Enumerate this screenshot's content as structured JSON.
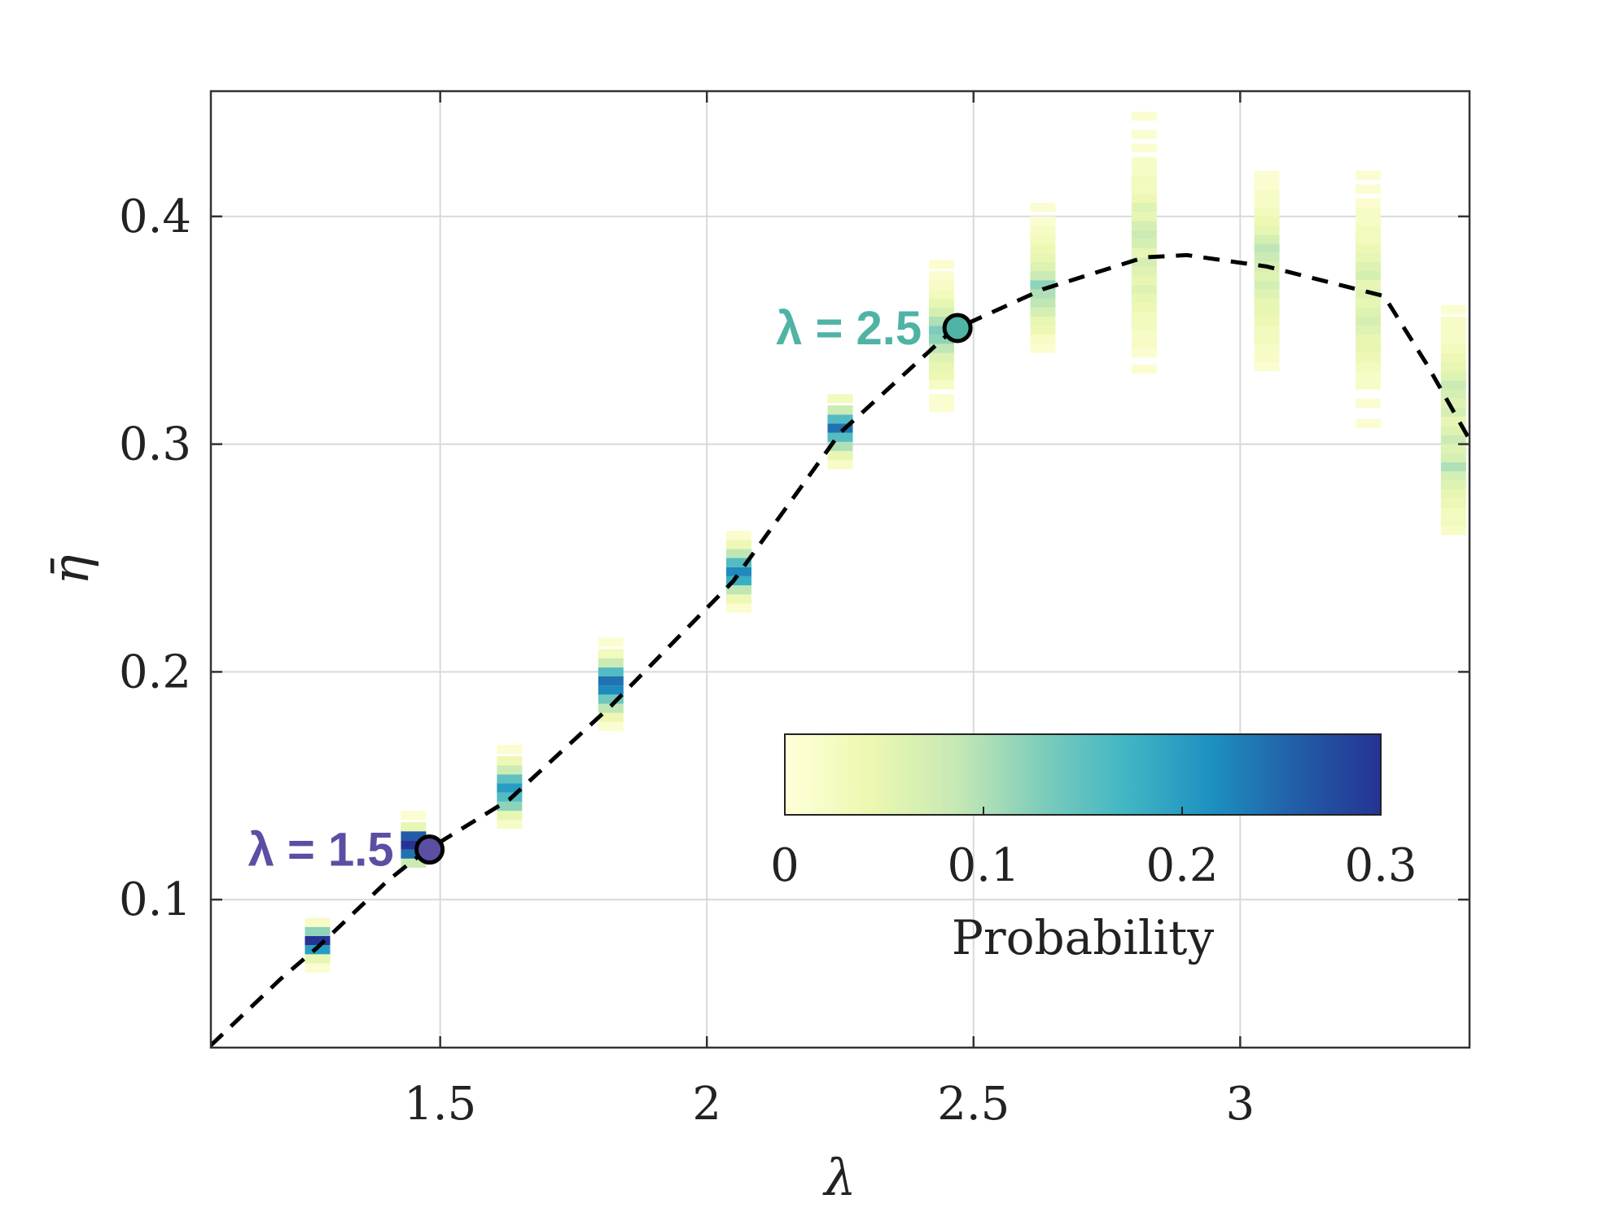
{
  "chart_data": {
    "type": "heatmap",
    "xlabel": "λ",
    "ylabel": "η̄",
    "xlim": [
      1.07,
      3.43
    ],
    "ylim": [
      0.035,
      0.455
    ],
    "xticks": [
      1.5,
      2,
      2.5,
      3
    ],
    "xtick_labels": [
      "1.5",
      "2",
      "2.5",
      "3"
    ],
    "yticks": [
      0.1,
      0.2,
      0.3,
      0.4
    ],
    "ytick_labels": [
      "0.1",
      "0.2",
      "0.3",
      "0.4"
    ],
    "grid": true,
    "mean_curve": {
      "style": "dashed",
      "color": "#000000",
      "x": [
        1.07,
        1.2,
        1.27,
        1.4,
        1.47,
        1.63,
        1.82,
        2.05,
        2.25,
        2.46,
        2.63,
        2.82,
        2.9,
        3.05,
        3.27,
        3.35,
        3.43
      ],
      "y": [
        0.036,
        0.065,
        0.079,
        0.108,
        0.121,
        0.144,
        0.185,
        0.24,
        0.305,
        0.35,
        0.368,
        0.382,
        0.383,
        0.378,
        0.365,
        0.335,
        0.302
      ]
    },
    "distributions": [
      {
        "x": 1.27,
        "bins": [
          [
            0.07,
            0.01
          ],
          [
            0.074,
            0.05
          ],
          [
            0.078,
            0.2
          ],
          [
            0.082,
            0.3
          ],
          [
            0.086,
            0.12
          ],
          [
            0.09,
            0.02
          ]
        ]
      },
      {
        "x": 1.45,
        "bins": [
          [
            0.116,
            0.08
          ],
          [
            0.12,
            0.24
          ],
          [
            0.124,
            0.3
          ],
          [
            0.128,
            0.26
          ],
          [
            0.132,
            0.05
          ],
          [
            0.137,
            0.01
          ]
        ]
      },
      {
        "x": 1.63,
        "bins": [
          [
            0.133,
            0.02
          ],
          [
            0.137,
            0.05
          ],
          [
            0.141,
            0.12
          ],
          [
            0.145,
            0.16
          ],
          [
            0.149,
            0.2
          ],
          [
            0.153,
            0.15
          ],
          [
            0.157,
            0.08
          ],
          [
            0.161,
            0.04
          ],
          [
            0.166,
            0.01
          ]
        ]
      },
      {
        "x": 1.82,
        "bins": [
          [
            0.176,
            0.01
          ],
          [
            0.18,
            0.04
          ],
          [
            0.184,
            0.09
          ],
          [
            0.188,
            0.14
          ],
          [
            0.192,
            0.22
          ],
          [
            0.196,
            0.24
          ],
          [
            0.2,
            0.16
          ],
          [
            0.204,
            0.08
          ],
          [
            0.208,
            0.03
          ],
          [
            0.213,
            0.01
          ]
        ]
      },
      {
        "x": 2.06,
        "bins": [
          [
            0.228,
            0.01
          ],
          [
            0.232,
            0.04
          ],
          [
            0.236,
            0.09
          ],
          [
            0.24,
            0.18
          ],
          [
            0.244,
            0.22
          ],
          [
            0.248,
            0.16
          ],
          [
            0.252,
            0.09
          ],
          [
            0.256,
            0.04
          ],
          [
            0.26,
            0.01
          ]
        ]
      },
      {
        "x": 2.25,
        "bins": [
          [
            0.291,
            0.02
          ],
          [
            0.295,
            0.05
          ],
          [
            0.299,
            0.1
          ],
          [
            0.303,
            0.16
          ],
          [
            0.307,
            0.24
          ],
          [
            0.311,
            0.16
          ],
          [
            0.315,
            0.08
          ],
          [
            0.32,
            0.03
          ]
        ]
      },
      {
        "x": 2.44,
        "bins": [
          [
            0.316,
            0.01
          ],
          [
            0.32,
            0.01
          ],
          [
            0.326,
            0.02
          ],
          [
            0.33,
            0.04
          ],
          [
            0.334,
            0.05
          ],
          [
            0.338,
            0.06
          ],
          [
            0.342,
            0.09
          ],
          [
            0.346,
            0.12
          ],
          [
            0.35,
            0.13
          ],
          [
            0.354,
            0.1
          ],
          [
            0.358,
            0.07
          ],
          [
            0.362,
            0.05
          ],
          [
            0.366,
            0.03
          ],
          [
            0.37,
            0.02
          ],
          [
            0.374,
            0.01
          ],
          [
            0.379,
            0.01
          ]
        ]
      },
      {
        "x": 2.63,
        "bins": [
          [
            0.342,
            0.01
          ],
          [
            0.346,
            0.02
          ],
          [
            0.35,
            0.04
          ],
          [
            0.354,
            0.05
          ],
          [
            0.358,
            0.07
          ],
          [
            0.362,
            0.09
          ],
          [
            0.366,
            0.1
          ],
          [
            0.37,
            0.12
          ],
          [
            0.374,
            0.08
          ],
          [
            0.378,
            0.06
          ],
          [
            0.382,
            0.05
          ],
          [
            0.386,
            0.04
          ],
          [
            0.39,
            0.03
          ],
          [
            0.394,
            0.02
          ],
          [
            0.398,
            0.01
          ],
          [
            0.404,
            0.01
          ]
        ]
      },
      {
        "x": 2.82,
        "bins": [
          [
            0.333,
            0.01
          ],
          [
            0.34,
            0.01
          ],
          [
            0.344,
            0.02
          ],
          [
            0.348,
            0.02
          ],
          [
            0.352,
            0.03
          ],
          [
            0.356,
            0.03
          ],
          [
            0.36,
            0.04
          ],
          [
            0.364,
            0.05
          ],
          [
            0.368,
            0.06
          ],
          [
            0.372,
            0.05
          ],
          [
            0.376,
            0.06
          ],
          [
            0.38,
            0.07
          ],
          [
            0.384,
            0.05
          ],
          [
            0.388,
            0.07
          ],
          [
            0.392,
            0.08
          ],
          [
            0.396,
            0.07
          ],
          [
            0.4,
            0.05
          ],
          [
            0.404,
            0.06
          ],
          [
            0.408,
            0.04
          ],
          [
            0.412,
            0.03
          ],
          [
            0.416,
            0.03
          ],
          [
            0.42,
            0.02
          ],
          [
            0.424,
            0.02
          ],
          [
            0.43,
            0.01
          ],
          [
            0.436,
            0.01
          ],
          [
            0.444,
            0.01
          ]
        ]
      },
      {
        "x": 3.05,
        "bins": [
          [
            0.334,
            0.01
          ],
          [
            0.338,
            0.02
          ],
          [
            0.342,
            0.02
          ],
          [
            0.346,
            0.03
          ],
          [
            0.35,
            0.03
          ],
          [
            0.354,
            0.04
          ],
          [
            0.358,
            0.05
          ],
          [
            0.362,
            0.05
          ],
          [
            0.366,
            0.06
          ],
          [
            0.37,
            0.07
          ],
          [
            0.374,
            0.06
          ],
          [
            0.378,
            0.07
          ],
          [
            0.382,
            0.08
          ],
          [
            0.386,
            0.09
          ],
          [
            0.39,
            0.07
          ],
          [
            0.394,
            0.05
          ],
          [
            0.398,
            0.04
          ],
          [
            0.402,
            0.03
          ],
          [
            0.406,
            0.02
          ],
          [
            0.41,
            0.02
          ],
          [
            0.414,
            0.01
          ],
          [
            0.418,
            0.01
          ]
        ]
      },
      {
        "x": 3.24,
        "bins": [
          [
            0.309,
            0.01
          ],
          [
            0.318,
            0.01
          ],
          [
            0.326,
            0.02
          ],
          [
            0.33,
            0.02
          ],
          [
            0.334,
            0.03
          ],
          [
            0.338,
            0.04
          ],
          [
            0.342,
            0.05
          ],
          [
            0.346,
            0.05
          ],
          [
            0.35,
            0.06
          ],
          [
            0.354,
            0.07
          ],
          [
            0.358,
            0.06
          ],
          [
            0.362,
            0.05
          ],
          [
            0.366,
            0.06
          ],
          [
            0.37,
            0.05
          ],
          [
            0.374,
            0.07
          ],
          [
            0.378,
            0.06
          ],
          [
            0.382,
            0.05
          ],
          [
            0.386,
            0.04
          ],
          [
            0.39,
            0.03
          ],
          [
            0.394,
            0.03
          ],
          [
            0.398,
            0.02
          ],
          [
            0.402,
            0.02
          ],
          [
            0.406,
            0.01
          ],
          [
            0.412,
            0.01
          ],
          [
            0.418,
            0.01
          ]
        ]
      },
      {
        "x": 3.4,
        "bins": [
          [
            0.262,
            0.02
          ],
          [
            0.266,
            0.03
          ],
          [
            0.27,
            0.03
          ],
          [
            0.274,
            0.04
          ],
          [
            0.278,
            0.05
          ],
          [
            0.282,
            0.06
          ],
          [
            0.286,
            0.07
          ],
          [
            0.29,
            0.1
          ],
          [
            0.294,
            0.07
          ],
          [
            0.298,
            0.06
          ],
          [
            0.302,
            0.08
          ],
          [
            0.306,
            0.06
          ],
          [
            0.31,
            0.05
          ],
          [
            0.314,
            0.07
          ],
          [
            0.318,
            0.06
          ],
          [
            0.322,
            0.07
          ],
          [
            0.326,
            0.08
          ],
          [
            0.33,
            0.06
          ],
          [
            0.334,
            0.05
          ],
          [
            0.338,
            0.04
          ],
          [
            0.342,
            0.03
          ],
          [
            0.346,
            0.02
          ],
          [
            0.35,
            0.02
          ],
          [
            0.354,
            0.02
          ],
          [
            0.359,
            0.01
          ]
        ]
      }
    ],
    "highlights": [
      {
        "x": 1.48,
        "y": 0.122,
        "label": "λ = 1.5",
        "color": "#5a4fa2"
      },
      {
        "x": 2.47,
        "y": 0.351,
        "label": "λ = 2.5",
        "color": "#4fb3a5"
      }
    ],
    "colorbar": {
      "title": "Probability",
      "range": [
        0,
        0.3
      ],
      "ticks": [
        0,
        0.1,
        0.2,
        0.3
      ],
      "tick_labels": [
        "0",
        "0.1",
        "0.2",
        "0.3"
      ],
      "colormap": [
        "#ffffd9",
        "#edf8b1",
        "#c7e9b4",
        "#7fcdbb",
        "#41b6c4",
        "#1d91c0",
        "#225ea8",
        "#253494"
      ]
    }
  }
}
